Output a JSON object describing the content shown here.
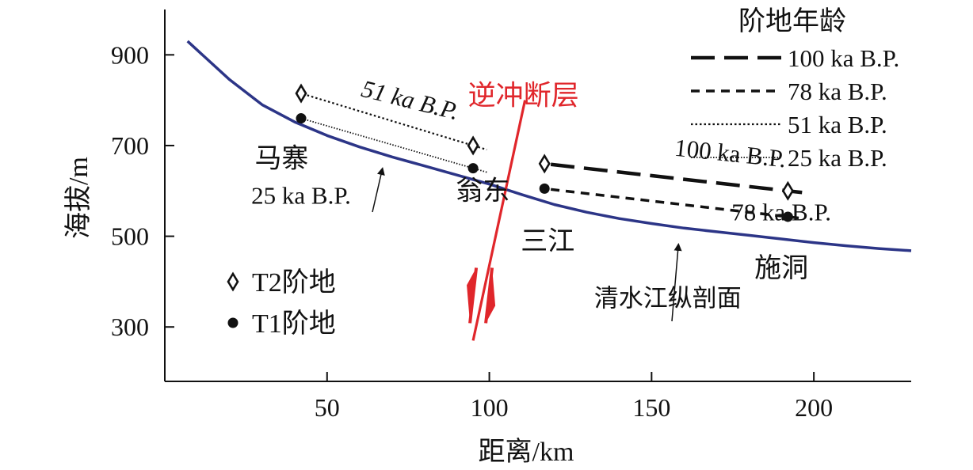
{
  "chart_data": {
    "type": "line",
    "xlabel": "距离/km",
    "ylabel": "海拔/m",
    "xlim": [
      0,
      230
    ],
    "ylim": [
      180,
      1000
    ],
    "x_ticks": [
      50,
      100,
      150,
      200
    ],
    "y_ticks": [
      300,
      500,
      700,
      900
    ],
    "grid": false,
    "colors": {
      "profile": "#2c3587",
      "fault": "#e0262b",
      "terrace": "#111111"
    },
    "profile": {
      "name": "清水江纵剖面",
      "x": [
        7,
        20,
        30,
        40,
        50,
        60,
        70,
        80,
        90,
        100,
        110,
        120,
        130,
        140,
        150,
        160,
        170,
        180,
        190,
        200,
        210,
        220,
        230
      ],
      "y": [
        930,
        845,
        790,
        752,
        722,
        697,
        675,
        655,
        635,
        615,
        592,
        570,
        553,
        539,
        528,
        518,
        510,
        502,
        494,
        486,
        479,
        473,
        468
      ]
    },
    "terraces": [
      {
        "age": "51 ka B.P.",
        "type": "T2",
        "marker": "diamond",
        "style": "dotted",
        "x": [
          42,
          95
        ],
        "y": [
          815,
          700
        ]
      },
      {
        "age": "25 ka B.P.",
        "type": "T1",
        "marker": "circle",
        "style": "fine-dotted",
        "x": [
          42,
          95
        ],
        "y": [
          760,
          650
        ]
      },
      {
        "age": "100 ka B.P.",
        "type": "T2",
        "marker": "diamond",
        "style": "long-dash",
        "x": [
          117,
          192
        ],
        "y": [
          660,
          600
        ]
      },
      {
        "age": "78 ka B.P.",
        "type": "T1",
        "marker": "circle",
        "style": "short-dash",
        "x": [
          117,
          192
        ],
        "y": [
          605,
          543
        ]
      }
    ],
    "fault": {
      "label": "逆冲断层",
      "x_top": 111,
      "y_top": 800,
      "x_bottom": 95,
      "y_bottom": 270
    },
    "places": [
      {
        "label": "马寨",
        "x": 36,
        "y": 652
      },
      {
        "label": "翁东",
        "x": 98,
        "y": 580
      },
      {
        "label": "三江",
        "x": 118,
        "y": 470
      },
      {
        "label": "施洞",
        "x": 190,
        "y": 410
      }
    ],
    "annotations": [
      {
        "text": "51 ka B.P.",
        "x": 75,
        "y": 783,
        "rotate": 14,
        "italic": true
      },
      {
        "text": "25 ka B.P.",
        "x": 42,
        "y": 572
      },
      {
        "text": "100 ka B.P.",
        "x": 174,
        "y": 665,
        "rotate": 6
      },
      {
        "text": "78 ka B.P.",
        "x": 190,
        "y": 535
      },
      {
        "text": "清水江纵剖面",
        "x": 155,
        "y": 345
      }
    ],
    "legend": {
      "title": "阶地年龄",
      "placement": "top-right",
      "entries": [
        {
          "label": "100 ka B.P.",
          "style": "long-dash"
        },
        {
          "label": "78 ka B.P.",
          "style": "short-dash"
        },
        {
          "label": "51 ka B.P.",
          "style": "dotted"
        },
        {
          "label": "25 ka B.P.",
          "style": "fine-dotted"
        }
      ]
    },
    "marker_legend": {
      "placement": "bottom-left",
      "entries": [
        {
          "label": "T2阶地",
          "marker": "diamond"
        },
        {
          "label": "T1阶地",
          "marker": "circle"
        }
      ]
    }
  }
}
